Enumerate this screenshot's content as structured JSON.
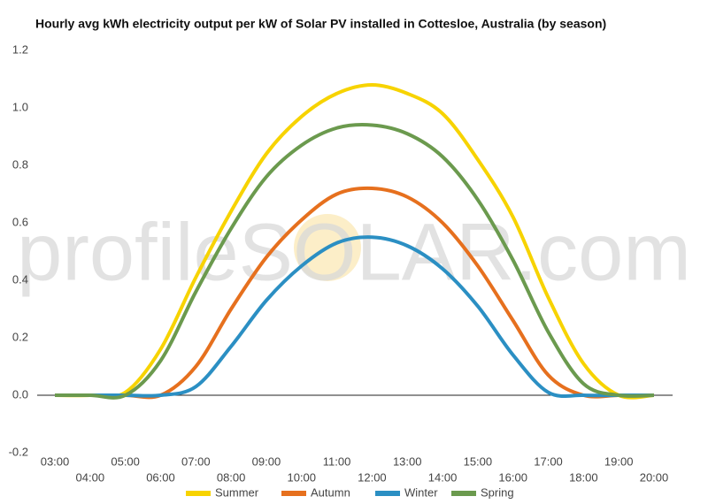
{
  "chart_data": {
    "type": "line",
    "title": "Hourly avg kWh electricity output per kW of Solar PV installed in Cottesloe, Australia (by season)",
    "watermark": "profileSOLAR.com",
    "categories": [
      "03:00",
      "04:00",
      "05:00",
      "06:00",
      "07:00",
      "08:00",
      "09:00",
      "10:00",
      "11:00",
      "12:00",
      "13:00",
      "14:00",
      "15:00",
      "16:00",
      "17:00",
      "18:00",
      "19:00",
      "20:00"
    ],
    "series": [
      {
        "name": "Summer",
        "color": "#f7d300",
        "values": [
          0,
          0,
          0.01,
          0.16,
          0.41,
          0.64,
          0.84,
          0.97,
          1.05,
          1.08,
          1.05,
          0.98,
          0.82,
          0.62,
          0.34,
          0.11,
          0,
          0
        ]
      },
      {
        "name": "Autumn",
        "color": "#e6701e",
        "values": [
          0,
          0,
          0,
          0,
          0.1,
          0.3,
          0.48,
          0.61,
          0.7,
          0.72,
          0.69,
          0.6,
          0.45,
          0.26,
          0.07,
          0,
          0,
          0
        ]
      },
      {
        "name": "Winter",
        "color": "#2b8fc3",
        "values": [
          0,
          0,
          0,
          0,
          0.03,
          0.17,
          0.33,
          0.45,
          0.53,
          0.55,
          0.52,
          0.44,
          0.31,
          0.14,
          0.01,
          0,
          0,
          0
        ]
      },
      {
        "name": "Spring",
        "color": "#6b9a4e",
        "values": [
          0,
          0,
          0,
          0.12,
          0.36,
          0.58,
          0.76,
          0.87,
          0.93,
          0.94,
          0.91,
          0.83,
          0.68,
          0.47,
          0.22,
          0.04,
          0,
          0
        ]
      }
    ],
    "ylim": [
      -0.2,
      1.2
    ],
    "yticks": [
      -0.2,
      {
        "value": 0,
        "label": "0.0"
      },
      0.2,
      0.4,
      0.6,
      0.8,
      {
        "value": 1,
        "label": "1.0"
      },
      1.2
    ],
    "grid": false,
    "legend": "bottom"
  }
}
